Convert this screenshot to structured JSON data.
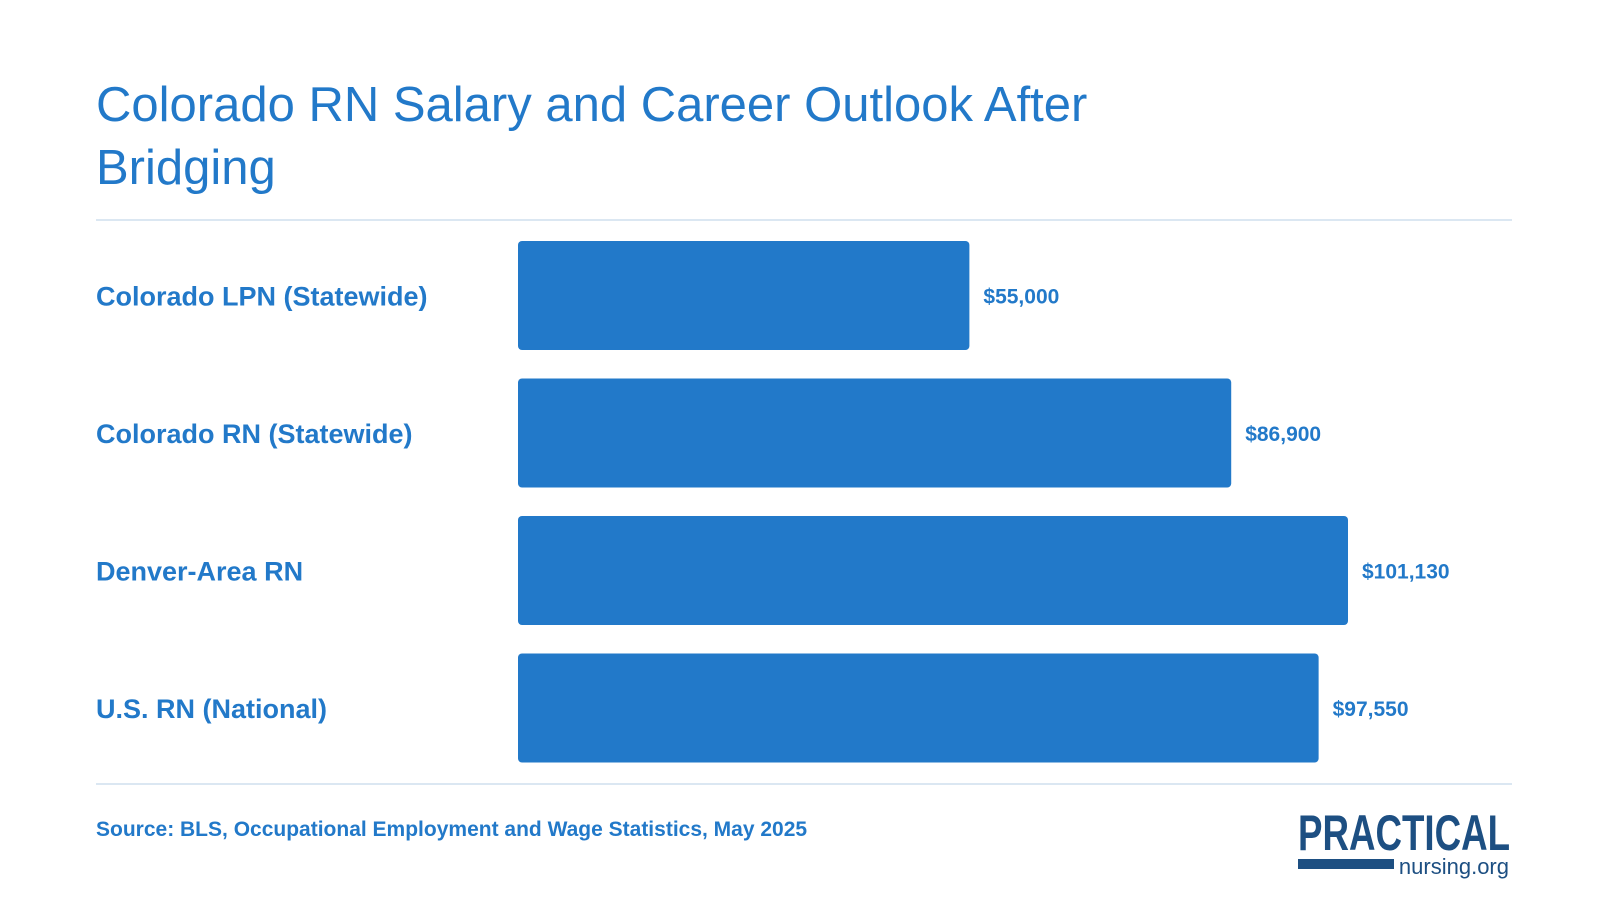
{
  "title": "Colorado RN Salary and Career Outlook After Bridging",
  "source": "Source: BLS, Occupational Employment and Wage Statistics, May 2025",
  "logo": {
    "top": "PRACTICAL",
    "bottom": "nursing.org"
  },
  "colors": {
    "accent": "#2279c9",
    "logo_dark": "#1d4f82",
    "rule": "#dbe7f2"
  },
  "chart_data": {
    "type": "bar",
    "orientation": "horizontal",
    "categories": [
      "Colorado LPN (Statewide)",
      "Colorado RN (Statewide)",
      "Denver-Area RN",
      "U.S. RN (National)"
    ],
    "values": [
      55000,
      86900,
      101130,
      97550
    ],
    "value_labels": [
      "$55,000",
      "$86,900",
      "$101,130",
      "$97,550"
    ],
    "title": "Colorado RN Salary and Career Outlook After Bridging",
    "xlabel": "",
    "ylabel": "",
    "xlim": [
      0,
      101130
    ],
    "grid": false,
    "legend": "none"
  }
}
